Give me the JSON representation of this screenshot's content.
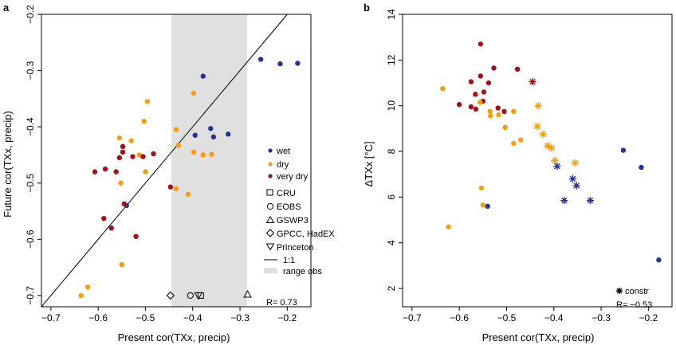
{
  "colors": {
    "wet": "#253494",
    "dry": "#f59e0b",
    "very_dry": "#a50f15",
    "range_obs": "#e0e0e0",
    "frame": "#000000"
  },
  "chart_data": [
    {
      "type": "scatter",
      "panel_label": "a",
      "xlabel": "Present cor(TXx, precip)",
      "ylabel": "Future cor(TXx, precip)",
      "xlim": [
        -0.72,
        -0.15
      ],
      "ylim": [
        -0.72,
        -0.2
      ],
      "xticks": [
        -0.7,
        -0.6,
        -0.5,
        -0.4,
        -0.3,
        -0.2
      ],
      "xtick_labels": [
        "−0.7",
        "−0.6",
        "−0.5",
        "−0.4",
        "−0.3",
        "−0.2"
      ],
      "yticks": [
        -0.7,
        -0.6,
        -0.5,
        -0.4,
        -0.3,
        -0.2
      ],
      "ytick_labels": [
        "−0.7",
        "−0.6",
        "−0.5",
        "−0.4",
        "−0.3",
        "−0.2"
      ],
      "range_obs": [
        -0.445,
        -0.285
      ],
      "reference_line": "1:1",
      "annotation": "R= 0.73",
      "legend": {
        "groups": [
          {
            "key": "wet",
            "label": "wet"
          },
          {
            "key": "dry",
            "label": "dry"
          },
          {
            "key": "very_dry",
            "label": "very dry"
          }
        ],
        "observations": [
          {
            "shape": "square",
            "label": "CRU"
          },
          {
            "shape": "circle",
            "label": "EOBS"
          },
          {
            "shape": "triangle",
            "label": "GSWP3"
          },
          {
            "shape": "diamond",
            "label": "GPCC, HadEX"
          },
          {
            "shape": "triangle-down",
            "label": "Princeton"
          }
        ],
        "line_label": "1:1",
        "range_label": "range obs"
      },
      "observations": [
        {
          "shape": "diamond",
          "x": -0.447,
          "y": -0.7
        },
        {
          "shape": "circle",
          "x": -0.405,
          "y": -0.7
        },
        {
          "shape": "triangle-down",
          "x": -0.388,
          "y": -0.7
        },
        {
          "shape": "square",
          "x": -0.383,
          "y": -0.7
        },
        {
          "shape": "triangle",
          "x": -0.284,
          "y": -0.698
        }
      ],
      "series": [
        {
          "group": "wet",
          "points": [
            {
              "x": -0.378,
              "y": -0.31
            },
            {
              "x": -0.256,
              "y": -0.28
            },
            {
              "x": -0.215,
              "y": -0.288
            },
            {
              "x": -0.178,
              "y": -0.287
            },
            {
              "x": -0.395,
              "y": -0.415
            },
            {
              "x": -0.362,
              "y": -0.403
            },
            {
              "x": -0.356,
              "y": -0.418
            },
            {
              "x": -0.325,
              "y": -0.413
            },
            {
              "x": -0.54,
              "y": -0.54
            }
          ]
        },
        {
          "group": "dry",
          "points": [
            {
              "x": -0.496,
              "y": -0.355
            },
            {
              "x": -0.398,
              "y": -0.34
            },
            {
              "x": -0.503,
              "y": -0.39
            },
            {
              "x": -0.555,
              "y": -0.42
            },
            {
              "x": -0.53,
              "y": -0.425
            },
            {
              "x": -0.513,
              "y": -0.45
            },
            {
              "x": -0.435,
              "y": -0.405
            },
            {
              "x": -0.398,
              "y": -0.445
            },
            {
              "x": -0.43,
              "y": -0.433
            },
            {
              "x": -0.378,
              "y": -0.45
            },
            {
              "x": -0.36,
              "y": -0.449
            },
            {
              "x": -0.5,
              "y": -0.48
            },
            {
              "x": -0.552,
              "y": -0.5
            },
            {
              "x": -0.435,
              "y": -0.51
            },
            {
              "x": -0.41,
              "y": -0.52
            },
            {
              "x": -0.55,
              "y": -0.645
            },
            {
              "x": -0.622,
              "y": -0.685
            },
            {
              "x": -0.636,
              "y": -0.7
            }
          ]
        },
        {
          "group": "very_dry",
          "points": [
            {
              "x": -0.548,
              "y": -0.435
            },
            {
              "x": -0.548,
              "y": -0.445
            },
            {
              "x": -0.555,
              "y": -0.455
            },
            {
              "x": -0.527,
              "y": -0.453
            },
            {
              "x": -0.505,
              "y": -0.453
            },
            {
              "x": -0.483,
              "y": -0.448
            },
            {
              "x": -0.607,
              "y": -0.48
            },
            {
              "x": -0.585,
              "y": -0.475
            },
            {
              "x": -0.562,
              "y": -0.48
            },
            {
              "x": -0.588,
              "y": -0.563
            },
            {
              "x": -0.572,
              "y": -0.58
            },
            {
              "x": -0.52,
              "y": -0.595
            },
            {
              "x": -0.545,
              "y": -0.537
            },
            {
              "x": -0.447,
              "y": -0.507
            }
          ]
        }
      ]
    },
    {
      "type": "scatter",
      "panel_label": "b",
      "xlabel": "Present cor(TXx, precip)",
      "ylabel": "ΔTXx [°C]",
      "xlim": [
        -0.72,
        -0.15
      ],
      "ylim": [
        1.2,
        14
      ],
      "xticks": [
        -0.7,
        -0.6,
        -0.5,
        -0.4,
        -0.3,
        -0.2
      ],
      "xtick_labels": [
        "−0.7",
        "−0.6",
        "−0.5",
        "−0.4",
        "−0.3",
        "−0.2"
      ],
      "yticks": [
        2,
        4,
        6,
        8,
        10,
        12,
        14
      ],
      "ytick_labels": [
        "2",
        "4",
        "6",
        "8",
        "10",
        "12",
        "14"
      ],
      "annotation": "R= −0.53",
      "legend": {
        "constr_label": "constr"
      },
      "constrained": [
        {
          "group": "very_dry",
          "x": -0.445,
          "y": 11.05
        },
        {
          "group": "dry",
          "x": -0.433,
          "y": 10.0
        },
        {
          "group": "dry",
          "x": -0.435,
          "y": 9.1
        },
        {
          "group": "dry",
          "x": -0.423,
          "y": 8.75
        },
        {
          "group": "dry",
          "x": -0.413,
          "y": 8.25
        },
        {
          "group": "dry",
          "x": -0.405,
          "y": 8.15
        },
        {
          "group": "dry",
          "x": -0.398,
          "y": 7.6
        },
        {
          "group": "dry",
          "x": -0.355,
          "y": 7.5
        },
        {
          "group": "wet",
          "x": -0.393,
          "y": 7.35
        },
        {
          "group": "wet",
          "x": -0.36,
          "y": 6.8
        },
        {
          "group": "wet",
          "x": -0.352,
          "y": 6.5
        },
        {
          "group": "wet",
          "x": -0.378,
          "y": 5.85
        },
        {
          "group": "wet",
          "x": -0.323,
          "y": 5.85
        }
      ],
      "series": [
        {
          "group": "very_dry",
          "points": [
            {
              "x": -0.555,
              "y": 12.7
            },
            {
              "x": -0.527,
              "y": 11.65
            },
            {
              "x": -0.477,
              "y": 11.6
            },
            {
              "x": -0.575,
              "y": 11.05
            },
            {
              "x": -0.555,
              "y": 11.3
            },
            {
              "x": -0.538,
              "y": 11.0
            },
            {
              "x": -0.566,
              "y": 10.5
            },
            {
              "x": -0.548,
              "y": 10.6
            },
            {
              "x": -0.55,
              "y": 10.2
            },
            {
              "x": -0.6,
              "y": 10.05
            },
            {
              "x": -0.575,
              "y": 9.95
            },
            {
              "x": -0.565,
              "y": 9.85
            },
            {
              "x": -0.518,
              "y": 9.9
            },
            {
              "x": -0.505,
              "y": 9.75
            }
          ]
        },
        {
          "group": "dry",
          "points": [
            {
              "x": -0.635,
              "y": 10.75
            },
            {
              "x": -0.556,
              "y": 10.15
            },
            {
              "x": -0.535,
              "y": 9.75
            },
            {
              "x": -0.517,
              "y": 9.6
            },
            {
              "x": -0.485,
              "y": 9.75
            },
            {
              "x": -0.503,
              "y": 9.05
            },
            {
              "x": -0.485,
              "y": 8.35
            },
            {
              "x": -0.47,
              "y": 8.5
            },
            {
              "x": -0.553,
              "y": 6.4
            },
            {
              "x": -0.55,
              "y": 5.65
            },
            {
              "x": -0.623,
              "y": 4.7
            },
            {
              "x": -0.534,
              "y": 9.55
            }
          ]
        },
        {
          "group": "wet",
          "points": [
            {
              "x": -0.253,
              "y": 8.05
            },
            {
              "x": -0.215,
              "y": 7.3
            },
            {
              "x": -0.178,
              "y": 3.25
            },
            {
              "x": -0.54,
              "y": 5.6
            }
          ]
        }
      ]
    }
  ]
}
